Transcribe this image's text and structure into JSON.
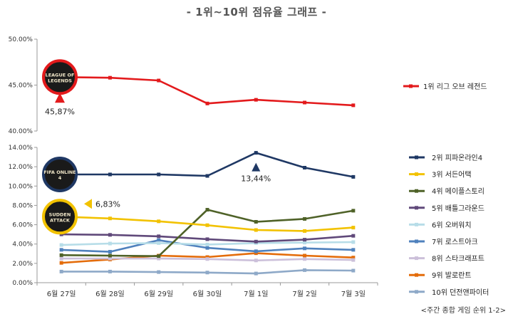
{
  "title": "- 1위~10위 점유율 그래프 -",
  "source": "<주간 종합 게임 순위 1-2>",
  "chart_data": {
    "type": "line",
    "categories": [
      "6월 27일",
      "6월 28일",
      "6월 29일",
      "6월 30일",
      "7월 1일",
      "7월 2일",
      "7월 3일"
    ],
    "upper_axis": {
      "ylim": [
        40,
        50
      ],
      "ticks": [
        "50.00%",
        "45.00%",
        "40.00%"
      ]
    },
    "lower_axis": {
      "ylim": [
        0,
        14
      ],
      "ticks": [
        "14.00%",
        "12.00%",
        "10.00%",
        "8.00%",
        "6.00%",
        "4.00%",
        "2.00%",
        "0.00%"
      ]
    },
    "series": [
      {
        "name": "1위 리그 오브 레전드",
        "color": "#e31a1c",
        "panel": "upper",
        "values": [
          45.87,
          45.8,
          45.5,
          43.0,
          43.4,
          43.1,
          42.8
        ]
      },
      {
        "name": "2위 피파온라인4",
        "color": "#1f3864",
        "panel": "lower",
        "values": [
          11.2,
          11.2,
          11.2,
          11.05,
          13.44,
          11.9,
          10.95
        ]
      },
      {
        "name": "3위 서든어택",
        "color": "#f2c200",
        "panel": "lower",
        "values": [
          6.83,
          6.65,
          6.35,
          5.95,
          5.45,
          5.35,
          5.7
        ]
      },
      {
        "name": "4위 메이플스토리",
        "color": "#4f6228",
        "panel": "lower",
        "values": [
          2.85,
          2.8,
          2.75,
          7.55,
          6.3,
          6.6,
          7.45
        ]
      },
      {
        "name": "5위 배틀그라운드",
        "color": "#60497a",
        "panel": "lower",
        "values": [
          5.0,
          4.95,
          4.8,
          4.5,
          4.25,
          4.45,
          4.85
        ]
      },
      {
        "name": "6위 오버워치",
        "color": "#b7dde8",
        "panel": "lower",
        "values": [
          3.9,
          4.05,
          4.1,
          3.95,
          4.1,
          4.15,
          4.2
        ]
      },
      {
        "name": "7위 로스트아크",
        "color": "#4f81bd",
        "panel": "lower",
        "values": [
          3.4,
          3.2,
          4.4,
          3.6,
          3.25,
          3.55,
          3.4
        ]
      },
      {
        "name": "8위 스타크래프트",
        "color": "#ccc0da",
        "panel": "lower",
        "values": [
          2.5,
          2.5,
          2.5,
          2.45,
          2.3,
          2.45,
          2.35
        ]
      },
      {
        "name": "9위 발로란트",
        "color": "#e46c0a",
        "panel": "lower",
        "values": [
          2.05,
          2.4,
          2.8,
          2.65,
          3.05,
          2.8,
          2.6
        ]
      },
      {
        "name": "10위 던전앤파이터",
        "color": "#8ea9c8",
        "panel": "lower",
        "values": [
          1.15,
          1.15,
          1.1,
          1.05,
          0.95,
          1.3,
          1.25
        ]
      }
    ],
    "annotations": [
      {
        "series": "1위 리그 오브 레전드",
        "point": 0,
        "text": "45,87%",
        "marker": "up-triangle",
        "color": "#e31a1c"
      },
      {
        "series": "2위 피파온라인4",
        "point": 4,
        "text": "13,44%",
        "marker": "up-triangle",
        "color": "#1f3864"
      },
      {
        "series": "3위 서든어택",
        "point": 0,
        "text": "6,83%",
        "marker": "left-triangle",
        "color": "#f2c200"
      }
    ],
    "logo_badges": [
      {
        "series": "1위 리그 오브 레전드",
        "text": "LEAGUE OF LEGENDS",
        "ring_color": "#e31a1c"
      },
      {
        "series": "2위 피파온라인4",
        "text": "FIFA ONLINE 4",
        "ring_color": "#1f3864"
      },
      {
        "series": "3위 서든어택",
        "text": "SUDDEN ATTACK",
        "ring_color": "#f2c200"
      }
    ],
    "legend_position": "right",
    "grid": false
  }
}
